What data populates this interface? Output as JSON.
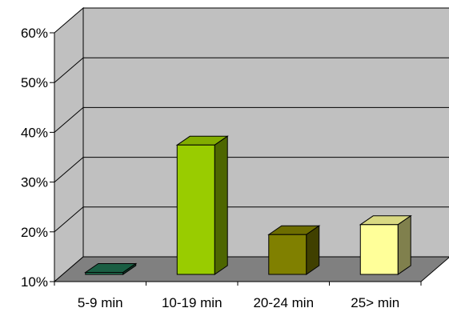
{
  "chart_data": {
    "type": "bar",
    "style": "3d-column",
    "categories": [
      "5-9 min",
      "10-19 min",
      "20-24 min",
      "25> min"
    ],
    "series": [
      {
        "values": [
          10.4,
          36,
          18,
          20
        ]
      }
    ],
    "ylim": [
      10,
      60
    ],
    "yticks": [
      10,
      20,
      30,
      40,
      50,
      60
    ],
    "ytick_labels": [
      "10%",
      "20%",
      "30%",
      "40%",
      "50%",
      "60%"
    ],
    "grid": true,
    "legend": "none",
    "colors": {
      "bars": [
        "#1f6f4f",
        "#99cc00",
        "#808000",
        "#ffff99"
      ],
      "wall": "#c0c0c0",
      "floor": "#808080",
      "gridline": "#000000"
    }
  }
}
